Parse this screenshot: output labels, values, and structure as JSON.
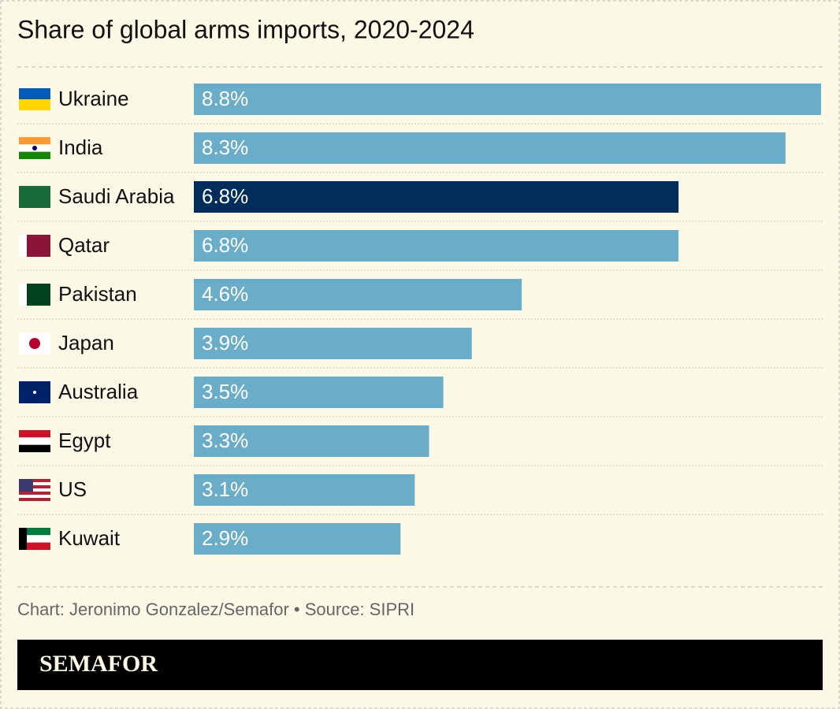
{
  "chart_data": {
    "type": "bar",
    "orientation": "horizontal",
    "title": "Share of global arms imports, 2020-2024",
    "categories": [
      "Ukraine",
      "India",
      "Saudi Arabia",
      "Qatar",
      "Pakistan",
      "Japan",
      "Australia",
      "Egypt",
      "US",
      "Kuwait"
    ],
    "values": [
      8.8,
      8.3,
      6.8,
      6.8,
      4.6,
      3.9,
      3.5,
      3.3,
      3.1,
      2.9
    ],
    "value_labels": [
      "8.8%",
      "8.3%",
      "6.8%",
      "6.8%",
      "4.6%",
      "3.9%",
      "3.5%",
      "3.3%",
      "3.1%",
      "2.9%"
    ],
    "colors": [
      "#6aadc9",
      "#6aadc9",
      "#002d5a",
      "#6aadc9",
      "#6aadc9",
      "#6aadc9",
      "#6aadc9",
      "#6aadc9",
      "#6aadc9",
      "#6aadc9"
    ],
    "source": "Chart: Jeronimo Gonzalez/Semafor • Source: SIPRI",
    "logo": "SEMAFOR"
  }
}
